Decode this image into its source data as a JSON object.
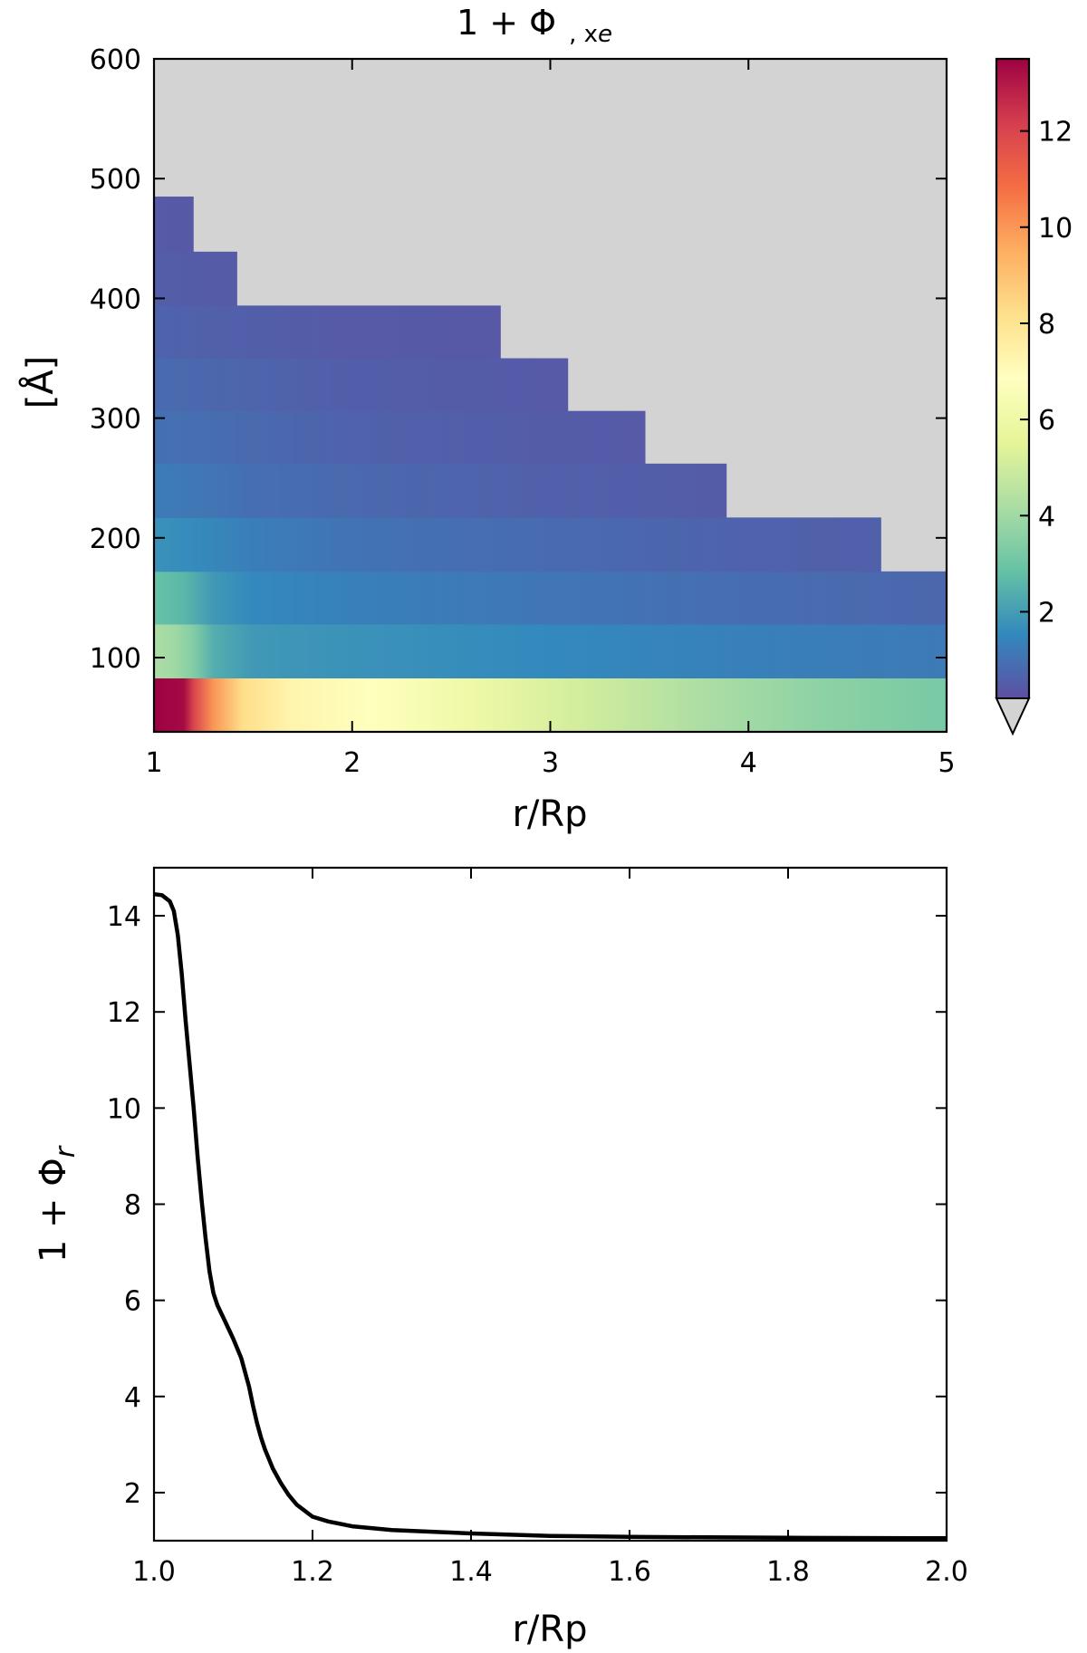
{
  "chart_data": [
    {
      "type": "heatmap",
      "title": "1 + Φ",
      "title_subscript": ", x",
      "title_subscript_sub": "e",
      "xlabel": "r/Rp",
      "ylabel": "[Å]",
      "xlim": [
        1,
        5
      ],
      "ylim": [
        38,
        600
      ],
      "xticks": [
        "1",
        "2",
        "3",
        "4",
        "5"
      ],
      "yticks": [
        "100",
        "200",
        "300",
        "400",
        "500",
        "600"
      ],
      "background_color": "#d3d3d3",
      "colormap": "Spectral_r",
      "colorbar": {
        "range": [
          0.2,
          13.5
        ],
        "ticks": [
          "2",
          "4",
          "6",
          "8",
          "10",
          "12"
        ],
        "extend": "min",
        "under_color": "#d3d3d3"
      },
      "rows": [
        {
          "y_from": 38,
          "y_to": 83,
          "x_max": 5.0,
          "profile": [
            [
              1.0,
              13.5
            ],
            [
              1.15,
              13.3
            ],
            [
              1.2,
              12.0
            ],
            [
              1.3,
              10.0
            ],
            [
              1.45,
              8.2
            ],
            [
              1.7,
              7.3
            ],
            [
              2.1,
              6.8
            ],
            [
              2.6,
              6.0
            ],
            [
              3.2,
              5.0
            ],
            [
              3.8,
              4.2
            ],
            [
              4.4,
              3.6
            ],
            [
              5.0,
              3.2
            ]
          ]
        },
        {
          "y_from": 83,
          "y_to": 128,
          "x_max": 5.0,
          "profile": [
            [
              1.0,
              4.2
            ],
            [
              1.1,
              4.0
            ],
            [
              1.2,
              3.4
            ],
            [
              1.3,
              2.4
            ],
            [
              1.5,
              1.9
            ],
            [
              2.0,
              1.75
            ],
            [
              3.0,
              1.55
            ],
            [
              4.0,
              1.35
            ],
            [
              5.0,
              1.2
            ]
          ]
        },
        {
          "y_from": 128,
          "y_to": 172,
          "x_max": 5.0,
          "profile": [
            [
              1.0,
              2.9
            ],
            [
              1.15,
              2.6
            ],
            [
              1.3,
              1.9
            ],
            [
              1.5,
              1.55
            ],
            [
              2.0,
              1.35
            ],
            [
              3.0,
              1.1
            ],
            [
              4.0,
              0.9
            ],
            [
              5.0,
              0.75
            ]
          ]
        },
        {
          "y_from": 172,
          "y_to": 217,
          "x_max": 4.67,
          "profile": [
            [
              1.0,
              1.75
            ],
            [
              1.2,
              1.6
            ],
            [
              1.5,
              1.3
            ],
            [
              2.0,
              1.05
            ],
            [
              3.0,
              0.85
            ],
            [
              4.0,
              0.65
            ],
            [
              4.67,
              0.6
            ]
          ]
        },
        {
          "y_from": 217,
          "y_to": 262,
          "x_max": 3.89,
          "profile": [
            [
              1.0,
              1.25
            ],
            [
              1.2,
              1.15
            ],
            [
              1.5,
              0.95
            ],
            [
              2.0,
              0.8
            ],
            [
              3.0,
              0.6
            ],
            [
              3.89,
              0.5
            ]
          ]
        },
        {
          "y_from": 262,
          "y_to": 306,
          "x_max": 3.48,
          "profile": [
            [
              1.0,
              1.0
            ],
            [
              1.3,
              0.9
            ],
            [
              2.0,
              0.65
            ],
            [
              3.0,
              0.5
            ],
            [
              3.48,
              0.45
            ]
          ]
        },
        {
          "y_from": 306,
          "y_to": 350,
          "x_max": 3.09,
          "profile": [
            [
              1.0,
              0.85
            ],
            [
              1.3,
              0.75
            ],
            [
              2.0,
              0.55
            ],
            [
              3.09,
              0.45
            ]
          ]
        },
        {
          "y_from": 350,
          "y_to": 394,
          "x_max": 2.75,
          "profile": [
            [
              1.0,
              0.7
            ],
            [
              1.3,
              0.6
            ],
            [
              2.0,
              0.45
            ],
            [
              2.75,
              0.4
            ]
          ]
        },
        {
          "y_from": 394,
          "y_to": 439,
          "x_max": 1.42,
          "profile": [
            [
              1.0,
              0.55
            ],
            [
              1.42,
              0.45
            ]
          ]
        },
        {
          "y_from": 439,
          "y_to": 485,
          "x_max": 1.2,
          "profile": [
            [
              1.0,
              0.45
            ],
            [
              1.2,
              0.42
            ]
          ]
        }
      ]
    },
    {
      "type": "line",
      "xlabel": "r/Rp",
      "ylabel": "1 + Φ",
      "ylabel_subscript": "r",
      "xlim": [
        1.0,
        2.0
      ],
      "ylim": [
        1.0,
        15.0
      ],
      "xticks": [
        "1.0",
        "1.2",
        "1.4",
        "1.6",
        "1.8",
        "2.0"
      ],
      "yticks": [
        "2",
        "4",
        "6",
        "8",
        "10",
        "12",
        "14"
      ],
      "grid": false,
      "series": [
        {
          "color": "#000000",
          "x": [
            1.0,
            1.01,
            1.02,
            1.025,
            1.03,
            1.035,
            1.04,
            1.045,
            1.05,
            1.055,
            1.06,
            1.065,
            1.07,
            1.075,
            1.08,
            1.09,
            1.1,
            1.11,
            1.12,
            1.125,
            1.13,
            1.135,
            1.14,
            1.145,
            1.15,
            1.16,
            1.17,
            1.18,
            1.2,
            1.22,
            1.25,
            1.3,
            1.4,
            1.5,
            1.6,
            1.8,
            2.0
          ],
          "y": [
            14.45,
            14.43,
            14.3,
            14.1,
            13.6,
            12.8,
            11.8,
            10.9,
            10.0,
            9.0,
            8.1,
            7.3,
            6.6,
            6.15,
            5.9,
            5.55,
            5.2,
            4.8,
            4.2,
            3.8,
            3.45,
            3.15,
            2.9,
            2.7,
            2.5,
            2.2,
            1.95,
            1.75,
            1.5,
            1.4,
            1.3,
            1.22,
            1.15,
            1.1,
            1.08,
            1.06,
            1.05
          ]
        }
      ]
    }
  ]
}
